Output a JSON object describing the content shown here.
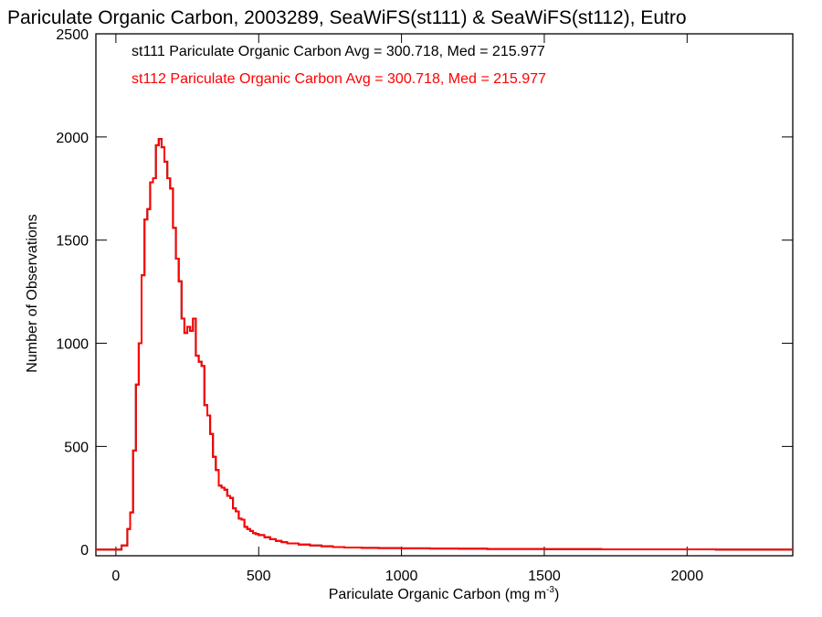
{
  "chart_data": {
    "type": "line",
    "title": "Pariculate Organic Carbon, 2003289, SeaWiFS(st111) & SeaWiFS(st112), Eutro",
    "xlabel": "Pariculate Organic Carbon (mg m",
    "xlabel_sup": "-3",
    "xlabel_close": ")",
    "ylabel": "Number of Observations",
    "xlim": [
      -70,
      2370
    ],
    "ylim": [
      -30,
      2500
    ],
    "x_ticks": [
      0,
      500,
      1000,
      1500,
      2000
    ],
    "y_ticks": [
      0,
      500,
      1000,
      1500,
      2000,
      2500
    ],
    "step": true,
    "legend": [
      "st111 Pariculate Organic Carbon Avg = 300.718, Med = 215.977",
      "st112 Pariculate Organic Carbon Avg = 300.718, Med = 215.977"
    ],
    "series": [
      {
        "name": "st111",
        "color": "#000000",
        "x": [
          -70,
          20,
          40,
          50,
          60,
          70,
          80,
          90,
          100,
          110,
          120,
          130,
          140,
          150,
          160,
          170,
          180,
          190,
          200,
          210,
          220,
          230,
          240,
          250,
          260,
          270,
          280,
          290,
          300,
          310,
          320,
          330,
          340,
          350,
          360,
          370,
          380,
          390,
          400,
          410,
          420,
          430,
          440,
          450,
          460,
          470,
          480,
          490,
          500,
          520,
          540,
          560,
          580,
          600,
          640,
          680,
          720,
          760,
          800,
          860,
          920,
          1000,
          1100,
          1200,
          1300,
          1400,
          1500,
          1700,
          1900,
          2100,
          2370
        ],
        "y": [
          0,
          20,
          100,
          180,
          480,
          800,
          1000,
          1330,
          1600,
          1650,
          1780,
          1800,
          1960,
          1990,
          1950,
          1880,
          1800,
          1750,
          1560,
          1410,
          1300,
          1120,
          1050,
          1080,
          1060,
          1120,
          940,
          910,
          890,
          700,
          650,
          560,
          450,
          385,
          310,
          300,
          290,
          260,
          250,
          200,
          185,
          150,
          145,
          110,
          100,
          90,
          80,
          75,
          70,
          60,
          50,
          42,
          36,
          30,
          24,
          20,
          16,
          12,
          10,
          8,
          7,
          6,
          5,
          4,
          3,
          3,
          2,
          1,
          1,
          0,
          0
        ]
      },
      {
        "name": "st112",
        "color": "#ff0000",
        "x": [
          -70,
          20,
          40,
          50,
          60,
          70,
          80,
          90,
          100,
          110,
          120,
          130,
          140,
          150,
          160,
          170,
          180,
          190,
          200,
          210,
          220,
          230,
          240,
          250,
          260,
          270,
          280,
          290,
          300,
          310,
          320,
          330,
          340,
          350,
          360,
          370,
          380,
          390,
          400,
          410,
          420,
          430,
          440,
          450,
          460,
          470,
          480,
          490,
          500,
          520,
          540,
          560,
          580,
          600,
          640,
          680,
          720,
          760,
          800,
          860,
          920,
          1000,
          1100,
          1200,
          1300,
          1400,
          1500,
          1700,
          1900,
          2100,
          2370
        ],
        "y": [
          0,
          20,
          100,
          180,
          480,
          800,
          1000,
          1330,
          1600,
          1650,
          1780,
          1800,
          1960,
          1990,
          1950,
          1880,
          1800,
          1750,
          1560,
          1410,
          1300,
          1120,
          1050,
          1080,
          1060,
          1120,
          940,
          910,
          890,
          700,
          650,
          560,
          450,
          385,
          310,
          300,
          290,
          260,
          250,
          200,
          185,
          150,
          145,
          110,
          100,
          90,
          80,
          75,
          70,
          60,
          50,
          42,
          36,
          30,
          24,
          20,
          16,
          12,
          10,
          8,
          7,
          6,
          5,
          4,
          3,
          3,
          2,
          1,
          1,
          0,
          0
        ]
      }
    ],
    "grid": false,
    "legend_placement": "top-left"
  }
}
